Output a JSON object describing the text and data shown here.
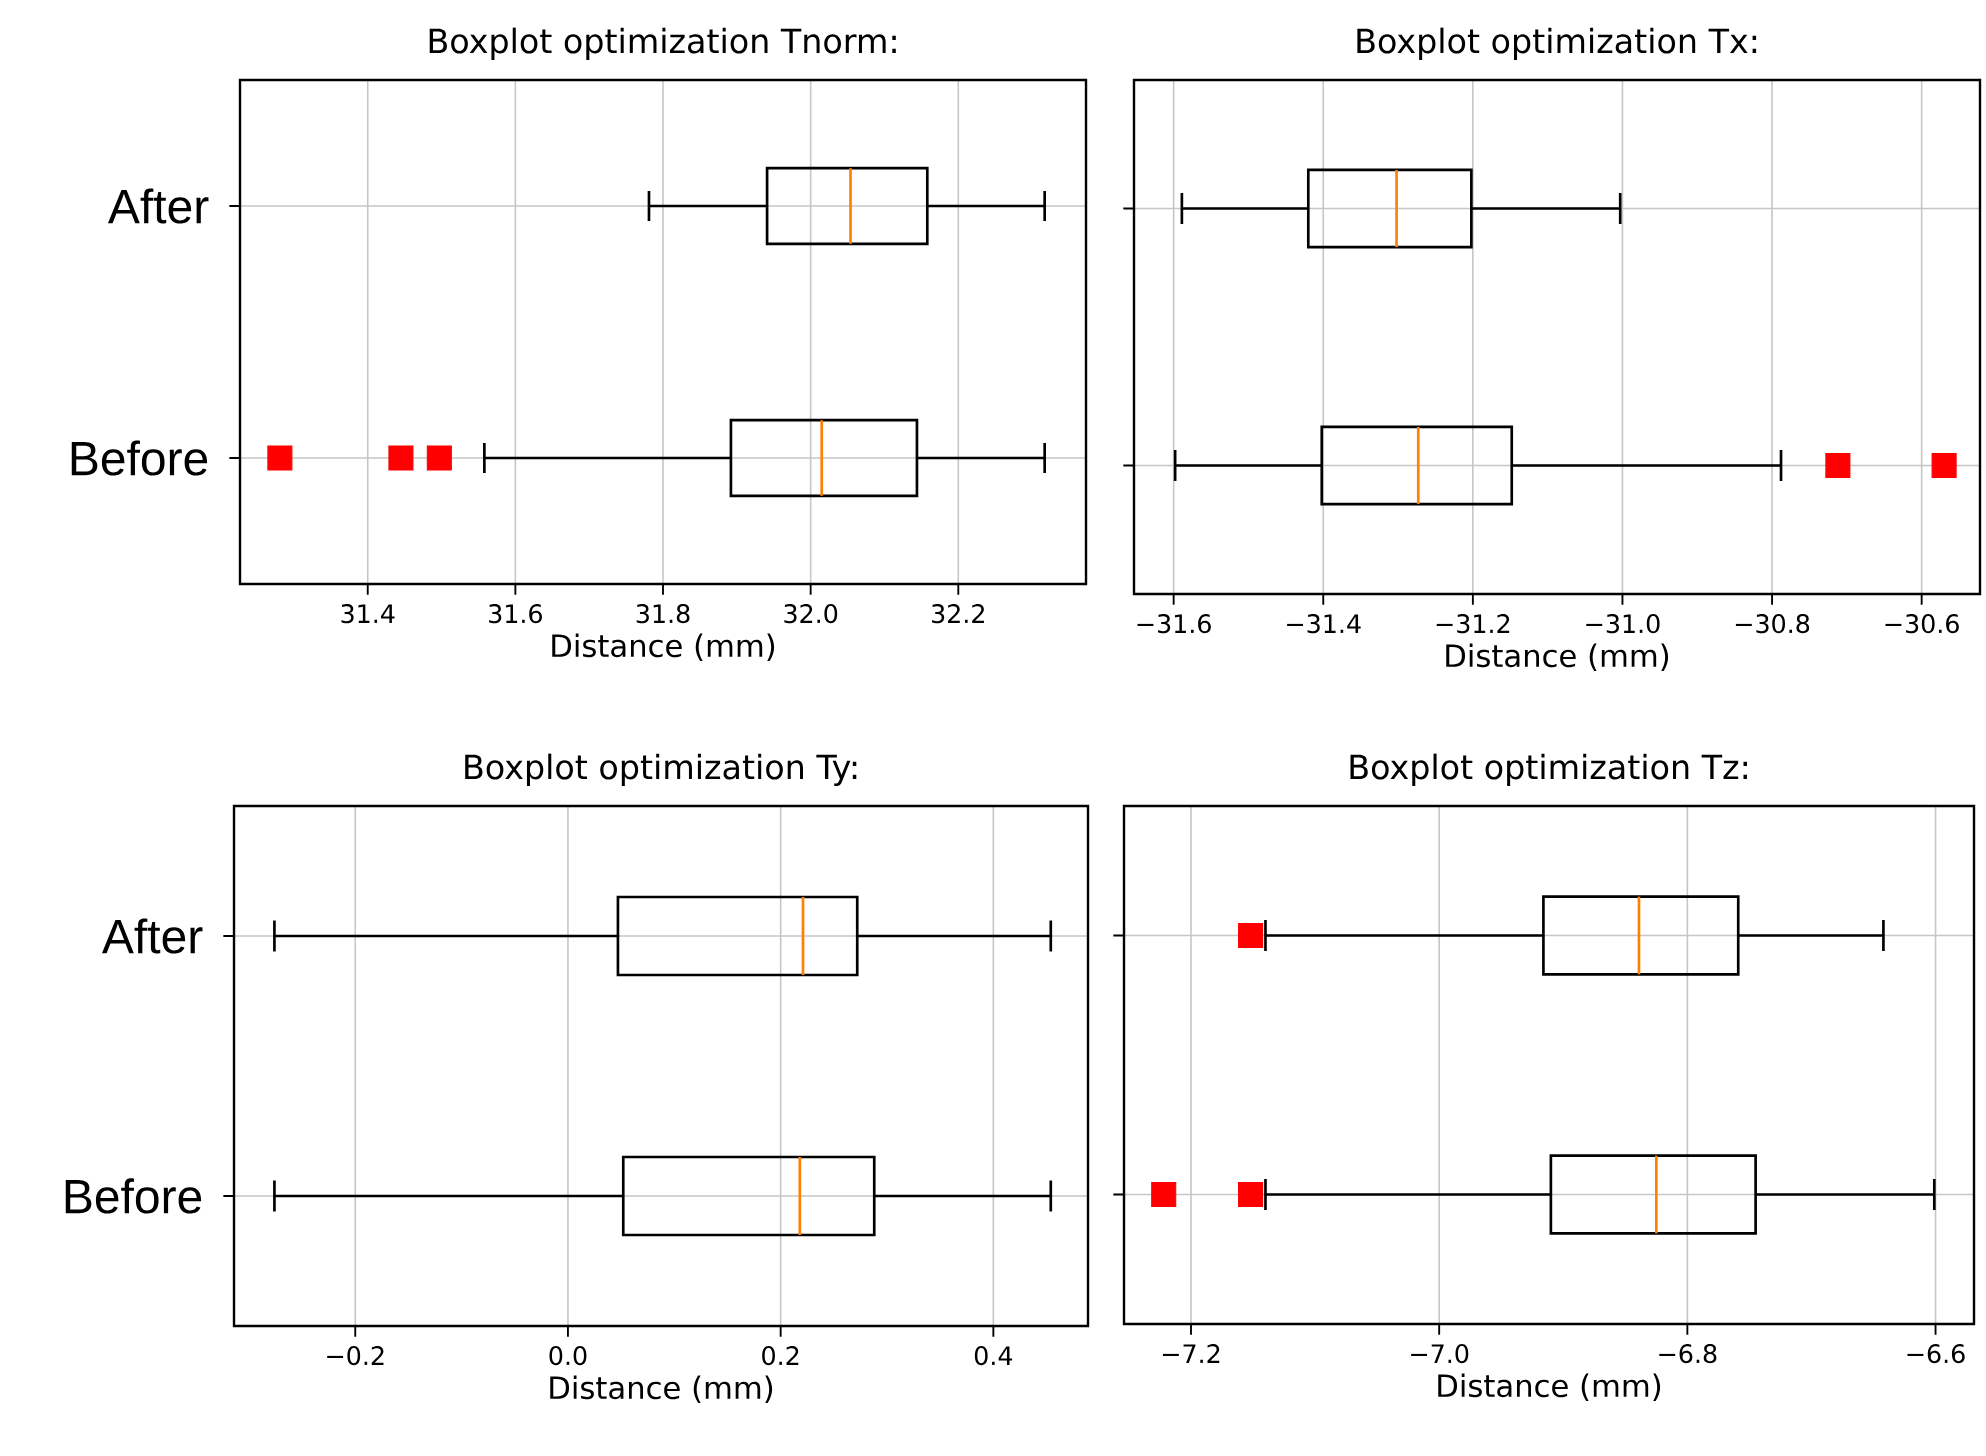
{
  "chart_data": [
    {
      "type": "box",
      "title": "Boxplot optimization Tnorm:",
      "xlabel": "Distance (mm)",
      "orientation": "horizontal",
      "categories": [
        "After",
        "Before"
      ],
      "grid": true,
      "marker": "square",
      "xlim": [
        31.227,
        32.373
      ],
      "xticks": [
        31.4,
        31.6,
        31.8,
        {
          "value": 32.0,
          "label": "32.0"
        },
        32.2
      ],
      "boxes": [
        {
          "low": 31.781,
          "q1": 31.941,
          "median": 32.054,
          "q3": 32.158,
          "high": 32.317
        },
        {
          "low": 31.558,
          "q1": 31.892,
          "median": 32.015,
          "q3": 32.144,
          "high": 32.317,
          "outliers": [
            31.281,
            31.445,
            31.497
          ]
        }
      ]
    },
    {
      "type": "box",
      "title": "Boxplot optimization Tx:",
      "xlabel": "Distance (mm)",
      "orientation": "horizontal",
      "categories": [
        null,
        null
      ],
      "grid": true,
      "marker": "square",
      "xlim": [
        -31.653,
        -30.522
      ],
      "xticks": [
        {
          "value": -31.6,
          "label": "−31.6"
        },
        {
          "value": -31.4,
          "label": "−31.4"
        },
        {
          "value": -31.2,
          "label": "−31.2"
        },
        {
          "value": -31.0,
          "label": "−31.0"
        },
        {
          "value": -30.8,
          "label": "−30.8"
        },
        {
          "value": -30.6,
          "label": "−30.6"
        }
      ],
      "boxes": [
        {
          "low": -31.589,
          "q1": -31.42,
          "median": -31.302,
          "q3": -31.202,
          "high": -31.003
        },
        {
          "low": -31.598,
          "q1": -31.402,
          "median": -31.273,
          "q3": -31.148,
          "high": -30.788,
          "outliers": [
            -30.712,
            -30.57
          ]
        }
      ]
    },
    {
      "type": "box",
      "title": "Boxplot optimization Ty:",
      "xlabel": "Distance (mm)",
      "orientation": "horizontal",
      "categories": [
        "After",
        "Before"
      ],
      "grid": true,
      "marker": "square",
      "xlim": [
        -0.314,
        0.489
      ],
      "xticks": [
        {
          "value": -0.2,
          "label": "−0.2"
        },
        {
          "value": 0.0,
          "label": "0.0"
        },
        0.2,
        0.4
      ],
      "boxes": [
        {
          "low": -0.276,
          "q1": 0.047,
          "median": 0.221,
          "q3": 0.272,
          "high": 0.454
        },
        {
          "low": -0.276,
          "q1": 0.052,
          "median": 0.218,
          "q3": 0.288,
          "high": 0.454
        }
      ]
    },
    {
      "type": "box",
      "title": "Boxplot optimization Tz:",
      "xlabel": "Distance (mm)",
      "orientation": "horizontal",
      "categories": [
        null,
        null
      ],
      "grid": true,
      "marker": "square",
      "xlim": [
        -7.254,
        -6.569
      ],
      "xticks": [
        {
          "value": -7.2,
          "label": "−7.2"
        },
        {
          "value": -7.0,
          "label": "−7.0"
        },
        {
          "value": -6.8,
          "label": "−6.8"
        },
        {
          "value": -6.6,
          "label": "−6.6"
        }
      ],
      "boxes": [
        {
          "low": -7.14,
          "q1": -6.916,
          "median": -6.839,
          "q3": -6.759,
          "high": -6.642,
          "outliers": [
            -7.152
          ]
        },
        {
          "low": -7.14,
          "q1": -6.91,
          "median": -6.825,
          "q3": -6.745,
          "high": -6.601,
          "outliers": [
            -7.222,
            -7.152
          ]
        }
      ]
    }
  ]
}
